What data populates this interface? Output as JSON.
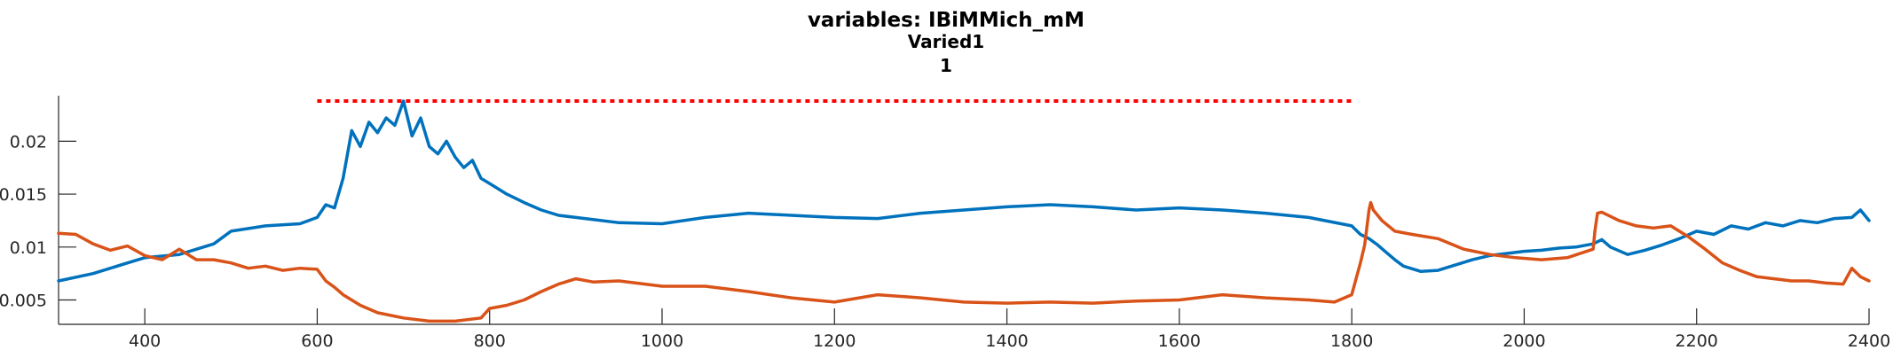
{
  "chart_data": {
    "type": "line",
    "title_lines": [
      "variables: IBiMMich_mM",
      "Varied1",
      "1"
    ],
    "xlabel": "",
    "ylabel": "",
    "xlim": [
      300,
      2400
    ],
    "ylim": [
      0.0027,
      0.0243
    ],
    "xticks": [
      400,
      600,
      800,
      1000,
      1200,
      1400,
      1600,
      1800,
      2000,
      2200,
      2400
    ],
    "yticks": [
      0.005,
      0.01,
      0.015,
      0.02
    ],
    "ytick_labels": [
      "0.005",
      "0.01",
      "0.015",
      "0.02"
    ],
    "grid": false,
    "series": [
      {
        "color": "#0072BD",
        "x": [
          300,
          340,
          380,
          400,
          440,
          480,
          500,
          540,
          580,
          600,
          610,
          620,
          630,
          640,
          650,
          660,
          670,
          680,
          690,
          700,
          710,
          720,
          730,
          740,
          750,
          760,
          770,
          780,
          790,
          800,
          820,
          840,
          860,
          880,
          900,
          950,
          1000,
          1050,
          1100,
          1150,
          1200,
          1250,
          1300,
          1350,
          1400,
          1450,
          1500,
          1550,
          1600,
          1650,
          1700,
          1750,
          1800,
          1810,
          1820,
          1830,
          1840,
          1850,
          1860,
          1880,
          1900,
          1920,
          1940,
          1960,
          1980,
          2000,
          2020,
          2040,
          2060,
          2080,
          2090,
          2100,
          2120,
          2140,
          2160,
          2180,
          2200,
          2220,
          2240,
          2260,
          2280,
          2300,
          2320,
          2340,
          2360,
          2380,
          2390,
          2400
        ],
        "y": [
          0.0068,
          0.0075,
          0.0085,
          0.009,
          0.0093,
          0.0103,
          0.0115,
          0.012,
          0.0122,
          0.0128,
          0.014,
          0.0137,
          0.0165,
          0.021,
          0.0195,
          0.0218,
          0.0208,
          0.0222,
          0.0215,
          0.0238,
          0.0205,
          0.0222,
          0.0195,
          0.0188,
          0.02,
          0.0185,
          0.0175,
          0.0182,
          0.0165,
          0.016,
          0.015,
          0.0142,
          0.0135,
          0.013,
          0.0128,
          0.0123,
          0.0122,
          0.0128,
          0.0132,
          0.013,
          0.0128,
          0.0127,
          0.0132,
          0.0135,
          0.0138,
          0.014,
          0.0138,
          0.0135,
          0.0137,
          0.0135,
          0.0132,
          0.0128,
          0.012,
          0.0112,
          0.0108,
          0.0102,
          0.0095,
          0.0088,
          0.0082,
          0.0077,
          0.0078,
          0.0083,
          0.0088,
          0.0092,
          0.0094,
          0.0096,
          0.0097,
          0.0099,
          0.01,
          0.0103,
          0.0107,
          0.01,
          0.0093,
          0.0097,
          0.0102,
          0.0108,
          0.0115,
          0.0112,
          0.012,
          0.0117,
          0.0123,
          0.012,
          0.0125,
          0.0123,
          0.0127,
          0.0128,
          0.0135,
          0.0125
        ]
      },
      {
        "color": "#D95319",
        "x": [
          300,
          320,
          340,
          360,
          380,
          400,
          420,
          440,
          460,
          480,
          500,
          520,
          540,
          560,
          580,
          600,
          610,
          620,
          630,
          650,
          670,
          700,
          730,
          760,
          790,
          800,
          820,
          840,
          860,
          880,
          900,
          920,
          950,
          1000,
          1050,
          1100,
          1150,
          1200,
          1250,
          1300,
          1350,
          1400,
          1450,
          1500,
          1550,
          1600,
          1650,
          1700,
          1750,
          1780,
          1800,
          1810,
          1815,
          1820,
          1822,
          1825,
          1835,
          1850,
          1870,
          1900,
          1930,
          1960,
          1990,
          2020,
          2050,
          2080,
          2082,
          2085,
          2090,
          2110,
          2130,
          2150,
          2170,
          2190,
          2210,
          2230,
          2250,
          2270,
          2290,
          2310,
          2330,
          2350,
          2370,
          2380,
          2390,
          2400
        ],
        "y": [
          0.0113,
          0.0112,
          0.0103,
          0.0097,
          0.0101,
          0.0092,
          0.0088,
          0.0098,
          0.0088,
          0.0088,
          0.0085,
          0.008,
          0.0082,
          0.0078,
          0.008,
          0.0079,
          0.0068,
          0.0062,
          0.0055,
          0.0045,
          0.0038,
          0.0033,
          0.003,
          0.003,
          0.0033,
          0.0042,
          0.0045,
          0.005,
          0.0058,
          0.0065,
          0.007,
          0.0067,
          0.0068,
          0.0063,
          0.0063,
          0.0058,
          0.0052,
          0.0048,
          0.0055,
          0.0052,
          0.0048,
          0.0047,
          0.0048,
          0.0047,
          0.0049,
          0.005,
          0.0055,
          0.0052,
          0.005,
          0.0048,
          0.0055,
          0.0085,
          0.0102,
          0.0135,
          0.0142,
          0.0135,
          0.0125,
          0.0115,
          0.0112,
          0.0108,
          0.0098,
          0.0093,
          0.009,
          0.0088,
          0.009,
          0.0098,
          0.0115,
          0.0132,
          0.0133,
          0.0125,
          0.012,
          0.0118,
          0.012,
          0.011,
          0.0098,
          0.0085,
          0.0078,
          0.0072,
          0.007,
          0.0068,
          0.0068,
          0.0066,
          0.0065,
          0.008,
          0.0072,
          0.0068
        ]
      },
      {
        "color": "#FF0000",
        "style": "dotted",
        "x": [
          600,
          1800
        ],
        "y": [
          0.0238,
          0.0238
        ]
      }
    ]
  }
}
